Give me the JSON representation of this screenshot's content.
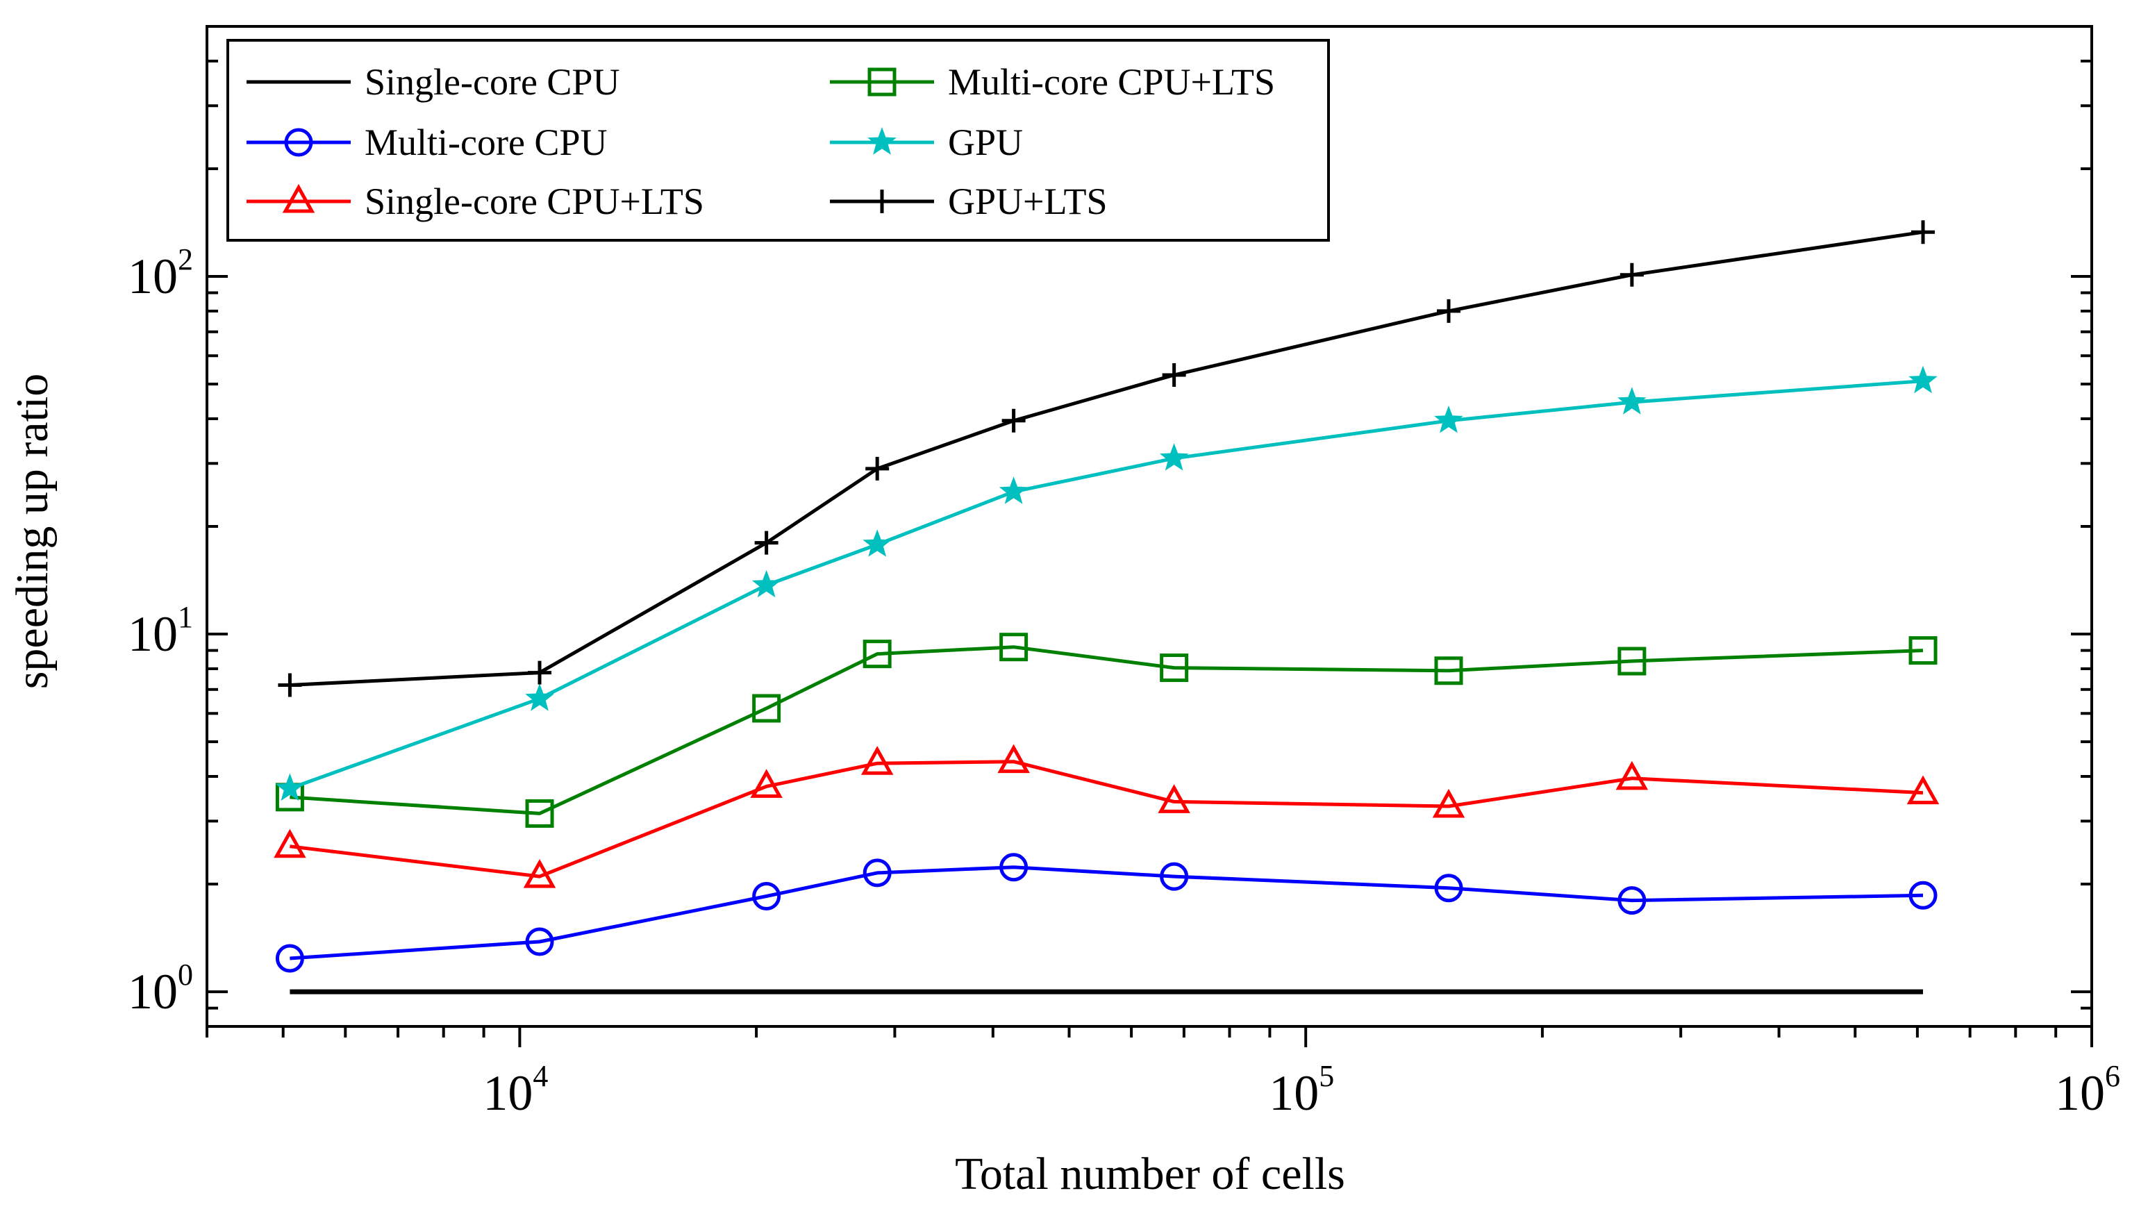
{
  "chart_data": {
    "type": "line",
    "title": "",
    "xlabel": "Total number of cells",
    "ylabel": "speeding up ratio",
    "xscale": "log",
    "yscale": "log",
    "xlim": [
      4000,
      1000000
    ],
    "ylim": [
      0.8,
      500
    ],
    "grid": false,
    "legend_position": "top-left",
    "x_ticks": [
      {
        "value": 10000,
        "base": "10",
        "exp": "4"
      },
      {
        "value": 100000,
        "base": "10",
        "exp": "5"
      },
      {
        "value": 1000000,
        "base": "10",
        "exp": "6"
      }
    ],
    "y_ticks": [
      {
        "value": 1,
        "base": "10",
        "exp": "0"
      },
      {
        "value": 10,
        "base": "10",
        "exp": "1"
      },
      {
        "value": 100,
        "base": "10",
        "exp": "2"
      }
    ],
    "x": [
      5100,
      10600,
      20600,
      28500,
      42500,
      68000,
      152000,
      260000,
      610000
    ],
    "series": [
      {
        "name": "Single-core CPU",
        "color": "#000000",
        "marker": "none",
        "values": [
          1.0,
          1.0,
          1.0,
          1.0,
          1.0,
          1.0,
          1.0,
          1.0,
          1.0
        ]
      },
      {
        "name": "Multi-core CPU",
        "color": "#0000ff",
        "marker": "circle",
        "values": [
          1.24,
          1.38,
          1.85,
          2.15,
          2.23,
          2.1,
          1.95,
          1.8,
          1.86
        ]
      },
      {
        "name": "Single-core CPU+LTS",
        "color": "#ff0000",
        "marker": "triangle",
        "values": [
          2.55,
          2.1,
          3.75,
          4.35,
          4.4,
          3.4,
          3.3,
          3.95,
          3.6
        ]
      },
      {
        "name": "Multi-core CPU+LTS",
        "color": "#008000",
        "marker": "square",
        "values": [
          3.5,
          3.15,
          6.2,
          8.8,
          9.2,
          8.05,
          7.9,
          8.4,
          9.0
        ]
      },
      {
        "name": "GPU",
        "color": "#00bfbf",
        "marker": "star",
        "values": [
          3.7,
          6.6,
          13.7,
          17.8,
          25.0,
          31.0,
          39.5,
          44.5,
          51.0
        ]
      },
      {
        "name": "GPU+LTS",
        "color": "#000000",
        "marker": "plus",
        "values": [
          7.2,
          7.8,
          18.0,
          29.0,
          39.5,
          53.0,
          80.0,
          101.0,
          133.0
        ]
      }
    ]
  }
}
